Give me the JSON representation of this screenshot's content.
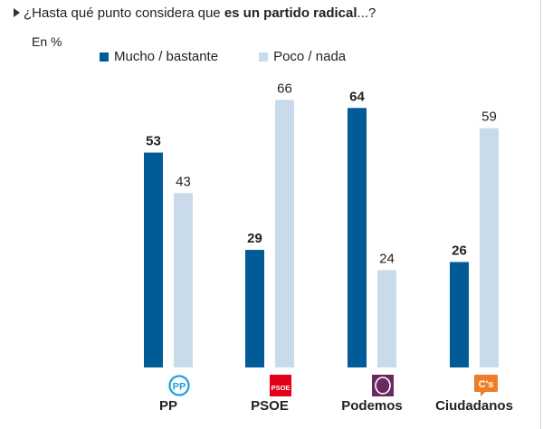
{
  "chart_data": {
    "type": "bar",
    "title_prefix": "¿Hasta qué punto considera que ",
    "title_bold": "es un partido radical",
    "title_suffix": "...?",
    "unit_label": "En %",
    "categories": [
      "PP",
      "PSOE",
      "Podemos",
      "Ciudadanos"
    ],
    "series": [
      {
        "name": "Mucho / bastante",
        "color": "#005b96",
        "values": [
          53,
          29,
          64,
          26
        ],
        "label_bold": true
      },
      {
        "name": "Poco / nada",
        "color": "#c9dbea",
        "values": [
          43,
          66,
          24,
          59
        ],
        "label_bold": false
      }
    ],
    "ylim": [
      0,
      70
    ],
    "grid": false,
    "legend_position": "top",
    "logos": [
      {
        "party": "PP",
        "icon": "pp-logo-icon",
        "text": "PP",
        "color": "#1fa0dc"
      },
      {
        "party": "PSOE",
        "icon": "psoe-logo-icon",
        "text": "PSOE",
        "color": "#e3001b"
      },
      {
        "party": "Podemos",
        "icon": "podemos-logo-icon",
        "text": "",
        "color": "#6b2a5f"
      },
      {
        "party": "Ciudadanos",
        "icon": "ciudadanos-logo-icon",
        "text": "C's",
        "color": "#f07c28"
      }
    ]
  }
}
